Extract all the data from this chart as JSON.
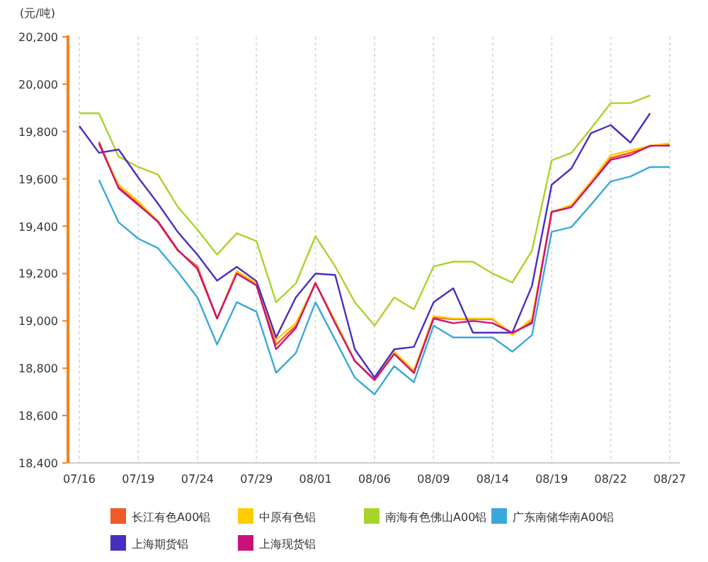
{
  "chart_data": {
    "type": "line",
    "ylabel": "(元/吨)",
    "categories": [
      "07/16",
      null,
      null,
      "07/19",
      null,
      null,
      "07/24",
      null,
      null,
      "07/29",
      null,
      null,
      "08/01",
      null,
      null,
      "08/06",
      null,
      null,
      "08/09",
      null,
      null,
      "08/14",
      null,
      null,
      "08/19",
      null,
      null,
      "08/22",
      null,
      null,
      "08/27"
    ],
    "ylim": [
      18400,
      20200
    ],
    "yticks": [
      {
        "value": 18400,
        "label": "18,400"
      },
      {
        "value": 18600,
        "label": "18,600"
      },
      {
        "value": 18800,
        "label": "18,800"
      },
      {
        "value": 19000,
        "label": "19,000"
      },
      {
        "value": 19200,
        "label": "19,200"
      },
      {
        "value": 19400,
        "label": "19,400"
      },
      {
        "value": 19600,
        "label": "19,600"
      },
      {
        "value": 19800,
        "label": "19,800"
      },
      {
        "value": 20000,
        "label": "20,000"
      },
      {
        "value": 20200,
        "label": "20,200"
      }
    ],
    "grid": "x",
    "legend": "bottom",
    "series": [
      {
        "name": "长江有色A00铝",
        "color": "#f05a28",
        "values": [
          null,
          19757,
          19565,
          19495,
          19416,
          19297,
          19230,
          19010,
          19208,
          19158,
          18900,
          18979,
          19158,
          18999,
          18831,
          18751,
          18870,
          18781,
          19015,
          19007,
          19007,
          19007,
          18944,
          18999,
          19462,
          19485,
          19585,
          19688,
          19710,
          19738,
          19747
        ]
      },
      {
        "name": "中原有色铝",
        "color": "#ffcc00",
        "values": [
          null,
          19747,
          19575,
          19505,
          19420,
          19300,
          19220,
          19010,
          19210,
          19160,
          18920,
          18990,
          19160,
          19000,
          18830,
          18750,
          18870,
          18790,
          19020,
          19010,
          19010,
          19010,
          18940,
          19010,
          19460,
          19490,
          19590,
          19700,
          19720,
          19740,
          19750
        ]
      },
      {
        "name": "南海有色佛山A00铝",
        "color": "#a8d42a",
        "values": [
          19877,
          19877,
          19694,
          19650,
          19618,
          19482,
          19386,
          19280,
          19370,
          19337,
          19079,
          19158,
          19357,
          19230,
          19079,
          18980,
          19099,
          19049,
          19230,
          19250,
          19250,
          19200,
          19162,
          19297,
          19678,
          19710,
          19813,
          19920,
          19920,
          19952,
          null
        ]
      },
      {
        "name": "广东南储华南A00铝",
        "color": "#3aa8dc",
        "values": [
          null,
          19595,
          19416,
          19347,
          19307,
          19208,
          19099,
          18900,
          19079,
          19039,
          18781,
          18864,
          19079,
          18920,
          18760,
          18690,
          18809,
          18741,
          18980,
          18930,
          18930,
          18930,
          18870,
          18940,
          19376,
          19396,
          19491,
          19589,
          19610,
          19650,
          19650
        ]
      },
      {
        "name": "上海期货铝",
        "color": "#4a2ec0",
        "values": [
          19823,
          19710,
          19724,
          19605,
          19495,
          19376,
          19280,
          19170,
          19228,
          19168,
          18930,
          19099,
          19200,
          19194,
          18880,
          18761,
          18880,
          18890,
          19079,
          19138,
          18950,
          18950,
          18950,
          19148,
          19575,
          19644,
          19793,
          19827,
          19753,
          19877,
          null
        ]
      },
      {
        "name": "上海现货铝",
        "color": "#cc1177",
        "values": [
          null,
          19750,
          19560,
          19490,
          19420,
          19300,
          19220,
          19010,
          19200,
          19150,
          18880,
          18970,
          19160,
          18990,
          18830,
          18750,
          18860,
          18780,
          19010,
          18990,
          19000,
          18990,
          18950,
          18990,
          19460,
          19480,
          19580,
          19680,
          19700,
          19740,
          19740
        ]
      }
    ]
  }
}
